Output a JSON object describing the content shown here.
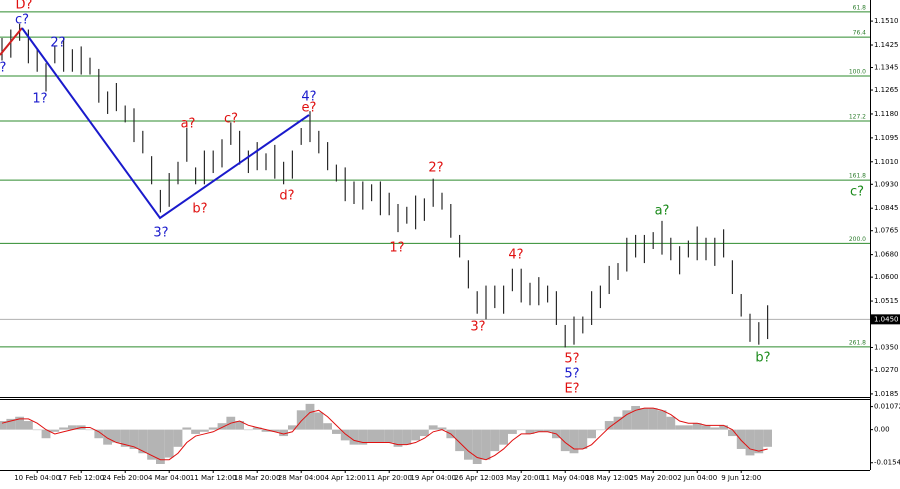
{
  "chart_data": {
    "type": "ohlc",
    "color": "#2b2b2b",
    "categories": [
      null,
      null,
      null,
      null,
      "10 Feb 04:00",
      null,
      null,
      null,
      null,
      "17 Feb 12:00",
      null,
      null,
      null,
      null,
      "24 Feb 20:00",
      null,
      null,
      null,
      null,
      "4 Mar 04:00",
      null,
      null,
      null,
      null,
      "11 Mar 12:00",
      null,
      null,
      null,
      null,
      "18 Mar 20:00",
      null,
      null,
      null,
      null,
      "28 Mar 04:00",
      null,
      null,
      null,
      null,
      "4 Apr 12:00",
      null,
      null,
      null,
      null,
      "11 Apr 20:00",
      null,
      null,
      null,
      null,
      "19 Apr 04:00",
      null,
      null,
      null,
      null,
      "26 Apr 12:00",
      null,
      null,
      null,
      null,
      "3 May 20:00",
      null,
      null,
      null,
      null,
      "11 May 04:00",
      null,
      null,
      null,
      null,
      "18 May 12:00",
      null,
      null,
      null,
      null,
      "25 May 20:00",
      null,
      null,
      null,
      null,
      "2 Jun 04:00",
      null,
      null,
      null,
      null,
      "9 Jun 12:00",
      null,
      null,
      null
    ],
    "high": [
      1.145,
      1.148,
      1.15,
      1.148,
      1.141,
      1.136,
      1.142,
      1.145,
      1.141,
      1.142,
      1.138,
      1.134,
      1.126,
      1.129,
      1.121,
      1.12,
      1.112,
      1.103,
      1.091,
      1.097,
      1.101,
      1.113,
      1.099,
      1.105,
      1.105,
      1.109,
      1.115,
      1.112,
      1.105,
      1.108,
      1.104,
      1.107,
      1.101,
      1.105,
      1.113,
      1.119,
      1.112,
      1.108,
      1.1,
      1.099,
      1.094,
      1.094,
      1.093,
      1.094,
      1.09,
      1.086,
      1.085,
      1.089,
      1.088,
      1.095,
      1.09,
      1.086,
      1.075,
      1.066,
      1.055,
      1.057,
      1.057,
      1.057,
      1.063,
      1.063,
      1.058,
      1.06,
      1.057,
      1.055,
      1.043,
      1.046,
      1.046,
      1.055,
      1.057,
      1.064,
      1.065,
      1.074,
      1.075,
      1.075,
      1.076,
      1.08,
      1.074,
      1.071,
      1.073,
      1.078,
      1.074,
      1.074,
      1.077,
      1.066,
      1.054,
      1.047,
      1.044,
      1.05
    ],
    "low": [
      1.137,
      1.138,
      1.144,
      1.136,
      1.133,
      1.126,
      1.136,
      1.133,
      1.133,
      1.132,
      1.132,
      1.122,
      1.118,
      1.119,
      1.115,
      1.108,
      1.104,
      1.093,
      1.083,
      1.085,
      1.093,
      1.101,
      1.093,
      1.093,
      1.097,
      1.099,
      1.107,
      1.1,
      1.097,
      1.098,
      1.098,
      1.095,
      1.093,
      1.095,
      1.107,
      1.108,
      1.104,
      1.098,
      1.094,
      1.087,
      1.086,
      1.084,
      1.087,
      1.082,
      1.082,
      1.076,
      1.079,
      1.077,
      1.08,
      1.085,
      1.084,
      1.074,
      1.067,
      1.056,
      1.047,
      1.045,
      1.049,
      1.047,
      1.055,
      1.051,
      1.05,
      1.05,
      1.051,
      1.043,
      1.035,
      1.036,
      1.04,
      1.043,
      1.049,
      1.054,
      1.059,
      1.062,
      1.067,
      1.065,
      1.07,
      1.068,
      1.066,
      1.061,
      1.067,
      1.066,
      1.066,
      1.064,
      1.067,
      1.054,
      1.046,
      1.037,
      1.036,
      1.038
    ],
    "ylim": [
      1.0174,
      1.1585
    ],
    "yticks": [
      {
        "value": 1.151,
        "label": "1.1510"
      },
      {
        "value": 1.1425,
        "label": "1.1425"
      },
      {
        "value": 1.1345,
        "label": "1.1345"
      },
      {
        "value": 1.1265,
        "label": "1.1265"
      },
      {
        "value": 1.118,
        "label": "1.1180"
      },
      {
        "value": 1.1095,
        "label": "1.1095"
      },
      {
        "value": 1.101,
        "label": "1.1010"
      },
      {
        "value": 1.093,
        "label": "1.0930"
      },
      {
        "value": 1.0845,
        "label": "1.0845"
      },
      {
        "value": 1.0765,
        "label": "1.0765"
      },
      {
        "value": 1.068,
        "label": "1.0680"
      },
      {
        "value": 1.06,
        "label": "1.0600"
      },
      {
        "value": 1.0515,
        "label": "1.0515"
      },
      {
        "value": 1.035,
        "label": "1.0350"
      },
      {
        "value": 1.027,
        "label": "1.0270"
      },
      {
        "value": 1.0185,
        "label": "1.0185"
      }
    ],
    "current": {
      "value": 1.045,
      "label": "1.0450"
    },
    "levels": [
      {
        "name": "61.8",
        "price": 1.1543
      },
      {
        "name": "76.4",
        "price": 1.1453
      },
      {
        "name": "100.0",
        "price": 1.1315
      },
      {
        "name": "127.2",
        "price": 1.1155
      },
      {
        "name": "161.8",
        "price": 1.0945
      },
      {
        "name": "200.0",
        "price": 1.072
      },
      {
        "name": "261.8",
        "price": 1.0352
      }
    ],
    "level_color": "#2e8b2e",
    "annotations": [
      {
        "text": "D?",
        "color": "#e01010"
      },
      {
        "text": "c?",
        "color": "#1a1acc"
      },
      {
        "text": "2?",
        "color": "#1a1acc"
      },
      {
        "text": "?",
        "color": "#1a1acc"
      },
      {
        "text": "1?",
        "color": "#1a1acc"
      },
      {
        "text": "a?",
        "color": "#e01010"
      },
      {
        "text": "c?",
        "color": "#e01010"
      },
      {
        "text": "4?",
        "color": "#1a1acc"
      },
      {
        "text": "e?",
        "color": "#e01010"
      },
      {
        "text": "b?",
        "color": "#e01010"
      },
      {
        "text": "3?",
        "color": "#1a1acc"
      },
      {
        "text": "d?",
        "color": "#e01010"
      },
      {
        "text": "2?",
        "color": "#e01010"
      },
      {
        "text": "1?",
        "color": "#e01010"
      },
      {
        "text": "4?",
        "color": "#e01010"
      },
      {
        "text": "3?",
        "color": "#e01010"
      },
      {
        "text": "5?",
        "color": "#e01010"
      },
      {
        "text": "5?",
        "color": "#1a1acc"
      },
      {
        "text": "E?",
        "color": "#e01010"
      },
      {
        "text": "a?",
        "color": "#1a8a1a"
      },
      {
        "text": "b?",
        "color": "#1a8a1a"
      },
      {
        "text": "c?",
        "color": "#1a8a1a"
      }
    ],
    "indicator": {
      "type": "histogram",
      "color": "#b4b4b4",
      "values": [
        0.004,
        0.005,
        0.006,
        0.004,
        0.0,
        -0.004,
        -0.001,
        0.001,
        0.002,
        0.002,
        0.0,
        -0.004,
        -0.007,
        -0.006,
        -0.008,
        -0.009,
        -0.011,
        -0.014,
        -0.016,
        -0.013,
        -0.008,
        0.001,
        -0.002,
        -0.001,
        0.001,
        0.003,
        0.006,
        0.004,
        0.0,
        0.001,
        -0.001,
        -0.001,
        -0.003,
        0.002,
        0.009,
        0.012,
        0.008,
        0.003,
        -0.002,
        -0.005,
        -0.007,
        -0.007,
        -0.006,
        -0.006,
        -0.006,
        -0.008,
        -0.007,
        -0.005,
        -0.003,
        0.002,
        0.001,
        -0.004,
        -0.01,
        -0.014,
        -0.016,
        -0.014,
        -0.01,
        -0.007,
        -0.002,
        0.0,
        -0.002,
        -0.001,
        -0.001,
        -0.004,
        -0.01,
        -0.011,
        -0.009,
        -0.004,
        0.0,
        0.004,
        0.006,
        0.009,
        0.011,
        0.01,
        0.01,
        0.009,
        0.006,
        0.002,
        0.002,
        0.003,
        0.002,
        0.001,
        0.002,
        -0.003,
        -0.009,
        -0.012,
        -0.011,
        -0.008
      ],
      "signal": {
        "color": "#e01010",
        "values": [
          0.003,
          0.004,
          0.005,
          0.005,
          0.003,
          0.0,
          -0.002,
          -0.001,
          0.0,
          0.001,
          0.001,
          -0.001,
          -0.004,
          -0.006,
          -0.007,
          -0.008,
          -0.01,
          -0.012,
          -0.014,
          -0.014,
          -0.011,
          -0.006,
          -0.003,
          -0.002,
          -0.001,
          0.001,
          0.003,
          0.004,
          0.002,
          0.001,
          0.0,
          -0.001,
          -0.002,
          -0.001,
          0.004,
          0.008,
          0.009,
          0.006,
          0.002,
          -0.002,
          -0.005,
          -0.006,
          -0.006,
          -0.006,
          -0.006,
          -0.007,
          -0.007,
          -0.006,
          -0.004,
          -0.001,
          0.0,
          -0.002,
          -0.006,
          -0.01,
          -0.013,
          -0.014,
          -0.012,
          -0.009,
          -0.005,
          -0.002,
          -0.002,
          -0.001,
          -0.001,
          -0.002,
          -0.006,
          -0.009,
          -0.009,
          -0.007,
          -0.003,
          0.001,
          0.004,
          0.007,
          0.009,
          0.01,
          0.01,
          0.009,
          0.007,
          0.004,
          0.003,
          0.003,
          0.002,
          0.002,
          0.002,
          0.0,
          -0.005,
          -0.009,
          -0.01,
          -0.009
        ]
      },
      "ylim": [
        -0.0188,
        0.0138
      ],
      "yticks": [
        0.01072,
        {
          "value": 0,
          "label": "0.00"
        },
        -0.01542
      ]
    }
  }
}
